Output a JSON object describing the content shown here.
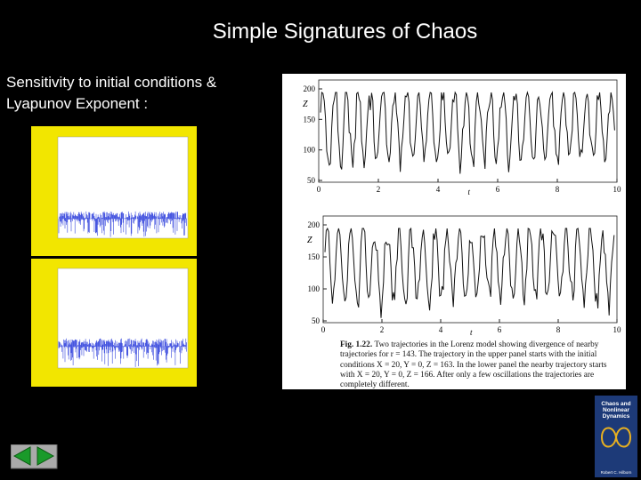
{
  "slide": {
    "title": "Simple Signatures of Chaos",
    "text_lines": [
      "Sensitivity to initial conditions &",
      "Lyapunov Exponent :"
    ],
    "figure": {
      "panels": [
        {
          "label": "r = 143",
          "y_label": "Z",
          "x_label": "t",
          "yticks": [
            200,
            150,
            100,
            50
          ],
          "xticks": [
            0,
            2,
            4,
            6,
            8,
            10
          ]
        },
        {
          "y_label": "Z",
          "x_label": "t",
          "yticks": [
            200,
            150,
            100,
            50
          ],
          "xticks": [
            0,
            2,
            4,
            6,
            8,
            10
          ]
        }
      ],
      "caption_label": "Fig. 1.22.",
      "caption": "Two trajectories in the Lorenz model showing divergence of nearby trajectories for r = 143. The trajectory in the upper panel starts with the initial conditions X = 20, Y = 0, Z = 163. In the lower panel the nearby trajectory starts with X = 20, Y = 0, Z = 166. After only a few oscillations the trajectories are completely different."
    },
    "book": {
      "title": "Chaos and Nonlinear Dynamics",
      "author": "Robert C. Hilborn"
    }
  }
}
